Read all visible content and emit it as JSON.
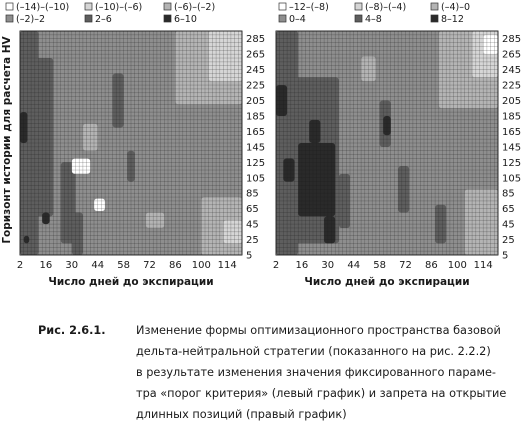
{
  "chart_data": [
    {
      "type": "heatmap",
      "title": "",
      "xlabel": "Число дней до экспирации",
      "ylabel": "Горизонт истории для расчета HV",
      "x_ticks": [
        "2",
        "16",
        "30",
        "44",
        "58",
        "72",
        "86",
        "100",
        "114"
      ],
      "y_ticks": [
        "5",
        "25",
        "45",
        "65",
        "85",
        "105",
        "125",
        "145",
        "165",
        "185",
        "205",
        "225",
        "245",
        "265",
        "285"
      ],
      "x_range": [
        2,
        122
      ],
      "y_range": [
        5,
        295
      ],
      "grid": true,
      "legend_placement": "top",
      "legend": [
        {
          "label": "(–14)–(–10)",
          "color": "#ffffff"
        },
        {
          "label": "(–10)–(–6)",
          "color": "#d6d6d6"
        },
        {
          "label": "(–6)–(–2)",
          "color": "#b4b4b4"
        },
        {
          "label": "(–2)–2",
          "color": "#8e8e8e"
        },
        {
          "label": "2–6",
          "color": "#5e5e5e"
        },
        {
          "label": "6–10",
          "color": "#2a2a2a"
        }
      ],
      "regions": [
        {
          "level": 3,
          "x": [
            2,
            122
          ],
          "y": [
            5,
            295
          ]
        },
        {
          "level": 4,
          "x": [
            2,
            12
          ],
          "y": [
            5,
            295
          ]
        },
        {
          "level": 4,
          "x": [
            10,
            20
          ],
          "y": [
            55,
            260
          ]
        },
        {
          "level": 4,
          "x": [
            24,
            32
          ],
          "y": [
            20,
            125
          ]
        },
        {
          "level": 4,
          "x": [
            30,
            36
          ],
          "y": [
            5,
            60
          ]
        },
        {
          "level": 4,
          "x": [
            52,
            58
          ],
          "y": [
            170,
            240
          ]
        },
        {
          "level": 4,
          "x": [
            60,
            64
          ],
          "y": [
            100,
            140
          ]
        },
        {
          "level": 2,
          "x": [
            86,
            122
          ],
          "y": [
            200,
            295
          ]
        },
        {
          "level": 2,
          "x": [
            100,
            122
          ],
          "y": [
            5,
            80
          ]
        },
        {
          "level": 2,
          "x": [
            36,
            44
          ],
          "y": [
            140,
            175
          ]
        },
        {
          "level": 2,
          "x": [
            70,
            80
          ],
          "y": [
            40,
            60
          ]
        },
        {
          "level": 1,
          "x": [
            104,
            122
          ],
          "y": [
            230,
            295
          ]
        },
        {
          "level": 1,
          "x": [
            112,
            122
          ],
          "y": [
            20,
            50
          ]
        },
        {
          "level": 0,
          "x": [
            30,
            40
          ],
          "y": [
            110,
            130
          ]
        },
        {
          "level": 0,
          "x": [
            42,
            48
          ],
          "y": [
            62,
            78
          ]
        },
        {
          "level": 5,
          "x": [
            2,
            6
          ],
          "y": [
            150,
            190
          ]
        },
        {
          "level": 5,
          "x": [
            14,
            18
          ],
          "y": [
            45,
            60
          ]
        },
        {
          "level": 5,
          "x": [
            4,
            7
          ],
          "y": [
            20,
            30
          ]
        }
      ]
    },
    {
      "type": "heatmap",
      "title": "",
      "xlabel": "Число дней до экспирации",
      "ylabel": "",
      "x_ticks": [
        "2",
        "16",
        "30",
        "44",
        "58",
        "72",
        "86",
        "100",
        "114"
      ],
      "y_ticks": [
        "5",
        "25",
        "45",
        "65",
        "85",
        "105",
        "125",
        "145",
        "165",
        "185",
        "205",
        "225",
        "245",
        "265",
        "285"
      ],
      "x_range": [
        2,
        122
      ],
      "y_range": [
        5,
        295
      ],
      "grid": true,
      "legend_placement": "top",
      "legend": [
        {
          "label": "–12–(–8)",
          "color": "#ffffff"
        },
        {
          "label": "(–8)–(–4)",
          "color": "#d6d6d6"
        },
        {
          "label": "(–4)–0",
          "color": "#b4b4b4"
        },
        {
          "label": "0–4",
          "color": "#8e8e8e"
        },
        {
          "label": "4–8",
          "color": "#5e5e5e"
        },
        {
          "label": "8–12",
          "color": "#2a2a2a"
        }
      ],
      "regions": [
        {
          "level": 3,
          "x": [
            2,
            122
          ],
          "y": [
            5,
            295
          ]
        },
        {
          "level": 4,
          "x": [
            2,
            14
          ],
          "y": [
            5,
            295
          ]
        },
        {
          "level": 4,
          "x": [
            12,
            36
          ],
          "y": [
            20,
            235
          ]
        },
        {
          "level": 4,
          "x": [
            36,
            42
          ],
          "y": [
            40,
            110
          ]
        },
        {
          "level": 4,
          "x": [
            58,
            64
          ],
          "y": [
            145,
            205
          ]
        },
        {
          "level": 4,
          "x": [
            68,
            74
          ],
          "y": [
            60,
            120
          ]
        },
        {
          "level": 4,
          "x": [
            88,
            94
          ],
          "y": [
            20,
            70
          ]
        },
        {
          "level": 5,
          "x": [
            14,
            34
          ],
          "y": [
            55,
            150
          ]
        },
        {
          "level": 5,
          "x": [
            20,
            26
          ],
          "y": [
            150,
            180
          ]
        },
        {
          "level": 5,
          "x": [
            28,
            34
          ],
          "y": [
            20,
            55
          ]
        },
        {
          "level": 5,
          "x": [
            2,
            8
          ],
          "y": [
            185,
            225
          ]
        },
        {
          "level": 5,
          "x": [
            6,
            12
          ],
          "y": [
            100,
            130
          ]
        },
        {
          "level": 5,
          "x": [
            60,
            64
          ],
          "y": [
            160,
            185
          ]
        },
        {
          "level": 2,
          "x": [
            90,
            122
          ],
          "y": [
            195,
            295
          ]
        },
        {
          "level": 2,
          "x": [
            104,
            122
          ],
          "y": [
            5,
            90
          ]
        },
        {
          "level": 2,
          "x": [
            48,
            56
          ],
          "y": [
            230,
            262
          ]
        },
        {
          "level": 1,
          "x": [
            108,
            122
          ],
          "y": [
            235,
            295
          ]
        },
        {
          "level": 0,
          "x": [
            114,
            122
          ],
          "y": [
            265,
            290
          ]
        }
      ]
    }
  ],
  "caption": {
    "number": "Рис. 2.6.1.",
    "lines": [
      "Изменение формы оптимизационного пространства базовой",
      "дельта-нейтральной стратегии (показанного на рис. 2.2.2)",
      "в результате изменения значения фиксированного параме-",
      "тра «порог критерия» (левый график) и запрета на открытие",
      "длинных позиций (правый график)"
    ]
  }
}
